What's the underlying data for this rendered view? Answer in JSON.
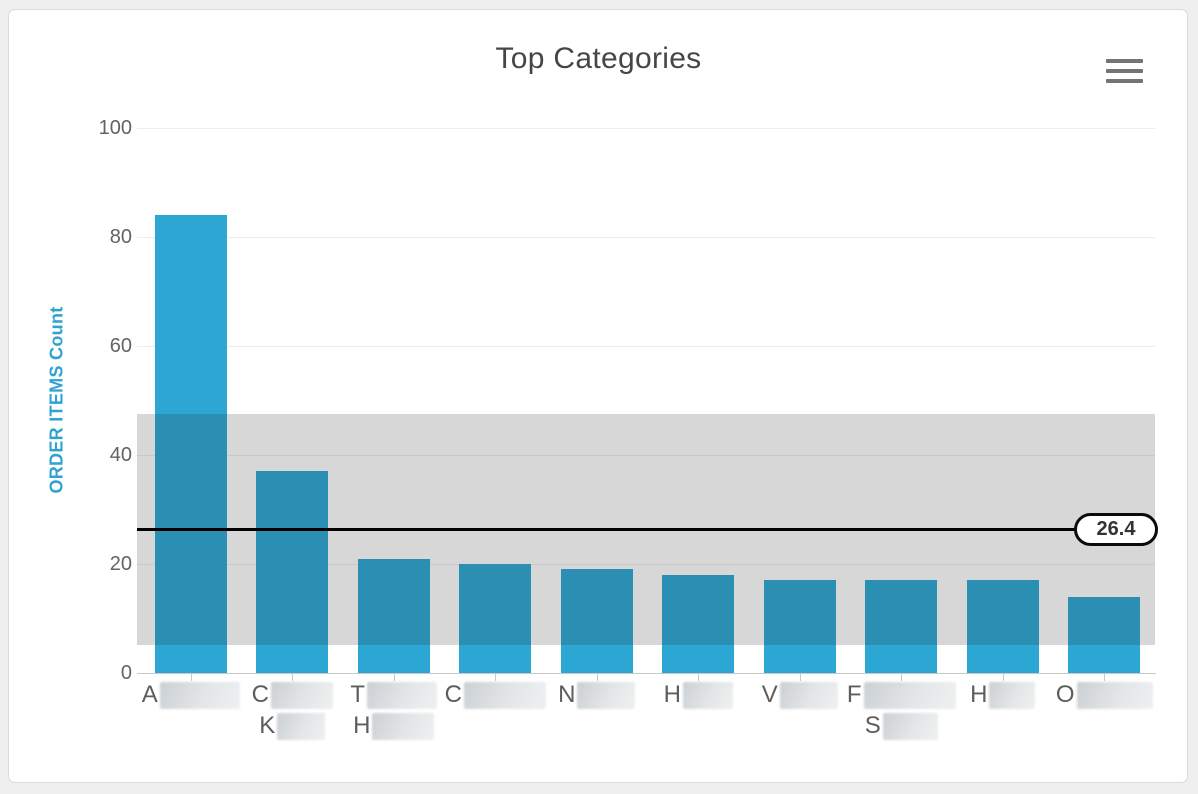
{
  "header": {
    "title": "Top Categories"
  },
  "chart_data": {
    "type": "bar",
    "title": "Top Categories",
    "xlabel": "",
    "ylabel": "ORDER ITEMS Count",
    "ylim": [
      0,
      100
    ],
    "yticks": [
      0,
      20,
      40,
      60,
      80,
      100
    ],
    "grid": true,
    "legend_position": "none",
    "categories": [
      {
        "redacted": true,
        "lines": [
          {
            "visible": "A",
            "redact_width": 80
          }
        ]
      },
      {
        "redacted": true,
        "lines": [
          {
            "visible": "C",
            "redact_width": 62
          },
          {
            "visible": "K",
            "redact_width": 48
          }
        ]
      },
      {
        "redacted": true,
        "lines": [
          {
            "visible": "T",
            "redact_width": 70
          },
          {
            "visible": "H",
            "redact_width": 62
          }
        ]
      },
      {
        "redacted": true,
        "lines": [
          {
            "visible": "C",
            "redact_width": 82
          }
        ]
      },
      {
        "redacted": true,
        "lines": [
          {
            "visible": "N",
            "redact_width": 58
          }
        ]
      },
      {
        "redacted": true,
        "lines": [
          {
            "visible": "H",
            "redact_width": 50
          }
        ]
      },
      {
        "redacted": true,
        "lines": [
          {
            "visible": "V",
            "redact_width": 58
          }
        ]
      },
      {
        "redacted": true,
        "lines": [
          {
            "visible": "F",
            "redact_width": 92
          },
          {
            "visible": "S",
            "redact_width": 55
          }
        ]
      },
      {
        "redacted": true,
        "lines": [
          {
            "visible": "H",
            "redact_width": 46
          }
        ]
      },
      {
        "redacted": true,
        "lines": [
          {
            "visible": "O",
            "redact_width": 76
          }
        ]
      }
    ],
    "values": [
      84,
      37,
      21,
      20,
      19,
      18,
      17,
      17,
      17,
      14
    ],
    "mean_line": {
      "value": 26.4,
      "label": "26.4"
    },
    "band": {
      "from": 5.2,
      "to": 47.6
    },
    "colors": {
      "bar": "#2ca6d3",
      "band_overlay": "rgba(45,45,45,0.19)",
      "mean_line": "#000000",
      "axis_title": "#2ea3d1",
      "tick_label": "#636363",
      "x_label": "#5d5d5d",
      "title": "#464646",
      "gridline": "#ededed",
      "axis_line": "#c9c9c9",
      "menu_icon": "#747474"
    }
  }
}
